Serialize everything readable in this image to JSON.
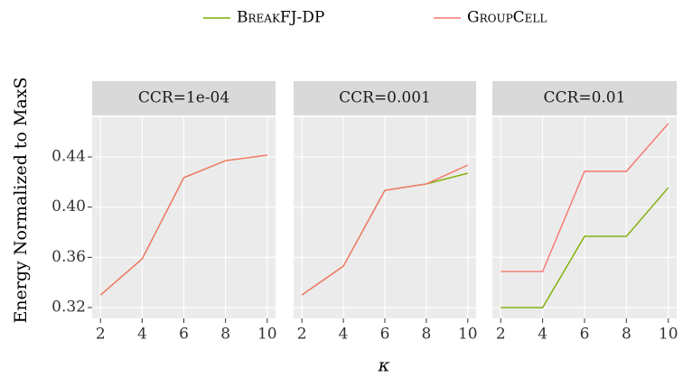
{
  "chart_data": {
    "type": "line",
    "x_label": "κ",
    "y_label": "Energy Normalized to MaxS",
    "x": [
      2,
      4,
      6,
      8,
      10
    ],
    "xlim": [
      1.6,
      10.4
    ],
    "xticks": [
      2,
      4,
      6,
      8,
      10
    ],
    "ylim": [
      0.3114,
      0.4716
    ],
    "yticks": [
      {
        "value": 0.32,
        "label": "0.32"
      },
      {
        "value": 0.36,
        "label": "0.36"
      },
      {
        "value": 0.4,
        "label": "0.40"
      },
      {
        "value": 0.44,
        "label": "0.44"
      }
    ],
    "grid": true,
    "legend_position": "top",
    "legend": [
      {
        "name": "BreakFJ-DP",
        "color": "#7CAE00"
      },
      {
        "name": "GroupCell",
        "color": "#F8766D"
      }
    ],
    "panels": [
      {
        "title": "CCR=1e-04",
        "series": [
          {
            "values": [
              0.33,
              0.3588,
              0.4235,
              0.437,
              0.4414
            ]
          },
          {
            "values": [
              0.33,
              0.3588,
              0.4235,
              0.437,
              0.4414
            ]
          }
        ]
      },
      {
        "title": "CCR=0.001",
        "series": [
          {
            "values": [
              0.33,
              0.353,
              0.4134,
              0.4185,
              0.427
            ]
          },
          {
            "values": [
              0.33,
              0.353,
              0.4134,
              0.4185,
              0.4335
            ]
          }
        ]
      },
      {
        "title": "CCR=0.01",
        "series": [
          {
            "values": [
              0.32,
              0.32,
              0.3767,
              0.3767,
              0.4155
            ]
          },
          {
            "values": [
              0.3487,
              0.3487,
              0.4285,
              0.4285,
              0.4666
            ]
          }
        ]
      }
    ]
  }
}
